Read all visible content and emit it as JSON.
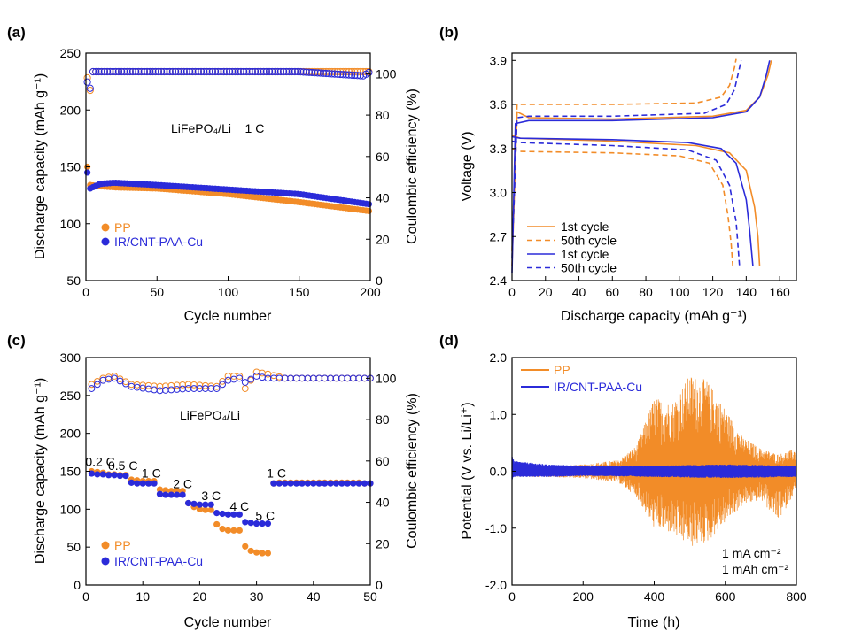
{
  "chart_data": [
    {
      "panel": "(a)",
      "type": "scatter",
      "xlabel": "Cycle number",
      "ylabel": "Discharge capacity (mAh g⁻¹)",
      "y2label": "Coulombic efficiency (%)",
      "xlim": [
        0,
        200
      ],
      "ylim": [
        50,
        250
      ],
      "y2lim": [
        0,
        110
      ],
      "xticks": [
        "0",
        "50",
        "100",
        "150",
        "200"
      ],
      "yticks": [
        "50",
        "100",
        "150",
        "200",
        "250"
      ],
      "y2ticks": [
        "0",
        "20",
        "40",
        "60",
        "80",
        "100"
      ],
      "annotation": "LiFePO₄/Li    1 C",
      "legend": [
        "PP",
        "IR/CNT-PAA-Cu"
      ],
      "legend_position": "bottom-left",
      "colors": {
        "PP": "#F28C28",
        "IR/CNT-PAA-Cu": "#2B2BD9"
      },
      "series": [
        {
          "name": "PP",
          "axis": "capacity",
          "x": [
            1,
            3,
            10,
            20,
            50,
            100,
            150,
            200
          ],
          "y": [
            150,
            134,
            133,
            132,
            131,
            126,
            119,
            111
          ]
        },
        {
          "name": "IR/CNT-PAA-Cu",
          "axis": "capacity",
          "x": [
            1,
            3,
            10,
            20,
            50,
            100,
            150,
            200
          ],
          "y": [
            145,
            131,
            135,
            136,
            134,
            130,
            126,
            117
          ]
        },
        {
          "name": "PP",
          "axis": "efficiency",
          "x": [
            1,
            2,
            3,
            5,
            10,
            50,
            100,
            150,
            195,
            200
          ],
          "y": [
            98,
            91,
            92,
            101,
            101,
            101,
            101,
            101,
            101,
            101
          ]
        },
        {
          "name": "IR/CNT-PAA-Cu",
          "axis": "efficiency",
          "x": [
            1,
            2,
            3,
            5,
            10,
            50,
            100,
            150,
            195,
            200
          ],
          "y": [
            96,
            95,
            93,
            101,
            101,
            101,
            101,
            101,
            99,
            101
          ]
        }
      ]
    },
    {
      "panel": "(b)",
      "type": "line",
      "xlabel": "Discharge capacity (mAh g⁻¹)",
      "ylabel": "Voltage (V)",
      "xlim": [
        0,
        170
      ],
      "ylim": [
        2.4,
        3.95
      ],
      "xticks": [
        "0",
        "20",
        "40",
        "60",
        "80",
        "100",
        "120",
        "140",
        "160"
      ],
      "yticks": [
        "2.4",
        "2.7",
        "3.0",
        "3.3",
        "3.6",
        "3.9"
      ],
      "legend": [
        "1st cycle",
        "50th cycle",
        "1st cycle",
        "50th cycle"
      ],
      "legend_position": "bottom-left",
      "series": [
        {
          "name": "1st cycle",
          "group": "PP",
          "color": "#F28C28",
          "dash": false,
          "charge": [
            [
              0,
              2.5
            ],
            [
              3,
              3.55
            ],
            [
              10,
              3.51
            ],
            [
              60,
              3.5
            ],
            [
              120,
              3.52
            ],
            [
              140,
              3.56
            ],
            [
              148,
              3.65
            ],
            [
              153,
              3.8
            ],
            [
              155,
              3.9
            ]
          ],
          "discharge": [
            [
              0,
              3.39
            ],
            [
              5,
              3.37
            ],
            [
              60,
              3.35
            ],
            [
              110,
              3.32
            ],
            [
              130,
              3.27
            ],
            [
              140,
              3.15
            ],
            [
              145,
              2.9
            ],
            [
              147,
              2.7
            ],
            [
              148,
              2.5
            ]
          ]
        },
        {
          "name": "50th cycle",
          "group": "PP",
          "color": "#F28C28",
          "dash": true,
          "charge": [
            [
              0,
              2.6
            ],
            [
              3,
              3.6
            ],
            [
              10,
              3.6
            ],
            [
              60,
              3.6
            ],
            [
              110,
              3.61
            ],
            [
              125,
              3.65
            ],
            [
              130,
              3.73
            ],
            [
              133,
              3.85
            ],
            [
              134,
              3.91
            ]
          ],
          "discharge": [
            [
              0,
              3.3
            ],
            [
              5,
              3.28
            ],
            [
              60,
              3.27
            ],
            [
              100,
              3.25
            ],
            [
              118,
              3.2
            ],
            [
              126,
              3.05
            ],
            [
              129,
              2.85
            ],
            [
              131,
              2.65
            ],
            [
              132,
              2.5
            ]
          ]
        },
        {
          "name": "1st cycle",
          "group": "IR/CNT-PAA-Cu",
          "color": "#2B2BD9",
          "dash": false,
          "charge": [
            [
              0,
              2.45
            ],
            [
              2,
              3.47
            ],
            [
              10,
              3.49
            ],
            [
              60,
              3.49
            ],
            [
              120,
              3.51
            ],
            [
              140,
              3.55
            ],
            [
              148,
              3.65
            ],
            [
              152,
              3.8
            ],
            [
              154,
              3.9
            ]
          ],
          "discharge": [
            [
              0,
              3.38
            ],
            [
              5,
              3.37
            ],
            [
              60,
              3.36
            ],
            [
              105,
              3.34
            ],
            [
              125,
              3.3
            ],
            [
              134,
              3.2
            ],
            [
              140,
              2.95
            ],
            [
              142,
              2.75
            ],
            [
              144,
              2.5
            ]
          ]
        },
        {
          "name": "50th cycle",
          "group": "IR/CNT-PAA-Cu",
          "color": "#2B2BD9",
          "dash": true,
          "charge": [
            [
              0,
              2.55
            ],
            [
              3,
              3.51
            ],
            [
              10,
              3.52
            ],
            [
              60,
              3.52
            ],
            [
              115,
              3.54
            ],
            [
              128,
              3.6
            ],
            [
              133,
              3.7
            ],
            [
              136,
              3.85
            ],
            [
              137,
              3.9
            ]
          ],
          "discharge": [
            [
              0,
              3.35
            ],
            [
              5,
              3.34
            ],
            [
              60,
              3.32
            ],
            [
              105,
              3.29
            ],
            [
              122,
              3.22
            ],
            [
              130,
              3.05
            ],
            [
              134,
              2.8
            ],
            [
              135,
              2.65
            ],
            [
              136,
              2.5
            ]
          ]
        }
      ]
    },
    {
      "panel": "(c)",
      "type": "scatter",
      "xlabel": "Cycle number",
      "ylabel": "Discharge capacity (mAh g⁻¹)",
      "y2label": "Coulombic efficiency (%)",
      "xlim": [
        0,
        50
      ],
      "ylim": [
        0,
        300
      ],
      "y2lim": [
        0,
        110
      ],
      "xticks": [
        "0",
        "10",
        "20",
        "30",
        "40",
        "50"
      ],
      "yticks": [
        "0",
        "50",
        "100",
        "150",
        "200",
        "250",
        "300"
      ],
      "y2ticks": [
        "0",
        "20",
        "40",
        "60",
        "80",
        "100"
      ],
      "annotation": "LiFePO₄/Li",
      "rate_labels": [
        {
          "text": "0.2 C",
          "x": 2.5,
          "y": 157
        },
        {
          "text": "0.5 C",
          "x": 6.5,
          "y": 152
        },
        {
          "text": "1 C",
          "x": 11.5,
          "y": 142
        },
        {
          "text": "2 C",
          "x": 17,
          "y": 128
        },
        {
          "text": "3 C",
          "x": 22,
          "y": 112
        },
        {
          "text": "4 C",
          "x": 27,
          "y": 98
        },
        {
          "text": "5 C",
          "x": 31.5,
          "y": 86
        },
        {
          "text": "1 C",
          "x": 33.5,
          "y": 142
        }
      ],
      "legend": [
        "PP",
        "IR/CNT-PAA-Cu"
      ],
      "legend_position": "bottom-left",
      "colors": {
        "PP": "#F28C28",
        "IR/CNT-PAA-Cu": "#2B2BD9"
      },
      "series": [
        {
          "name": "PP",
          "axis": "capacity",
          "x": [
            1,
            2,
            3,
            4,
            5,
            6,
            7,
            8,
            9,
            10,
            11,
            12,
            13,
            14,
            15,
            16,
            17,
            18,
            19,
            20,
            21,
            22,
            23,
            24,
            25,
            26,
            27,
            28,
            29,
            30,
            31,
            32,
            33,
            34,
            35,
            36,
            37,
            38,
            39,
            40,
            41,
            42,
            43,
            44,
            45,
            46,
            47,
            48,
            49,
            50
          ],
          "y": [
            150,
            149,
            148,
            146,
            146,
            145,
            145,
            139,
            138,
            137,
            137,
            137,
            126,
            125,
            124,
            124,
            124,
            108,
            103,
            100,
            99,
            99,
            80,
            74,
            72,
            72,
            72,
            51,
            45,
            43,
            42,
            42,
            134,
            135,
            135,
            135,
            135,
            135,
            135,
            135,
            135,
            135,
            135,
            135,
            135,
            135,
            135,
            135,
            134,
            134
          ]
        },
        {
          "name": "IR/CNT-PAA-Cu",
          "axis": "capacity",
          "x": [
            1,
            2,
            3,
            4,
            5,
            6,
            7,
            8,
            9,
            10,
            11,
            12,
            13,
            14,
            15,
            16,
            17,
            18,
            19,
            20,
            21,
            22,
            23,
            24,
            25,
            26,
            27,
            28,
            29,
            30,
            31,
            32,
            33,
            34,
            35,
            36,
            37,
            38,
            39,
            40,
            41,
            42,
            43,
            44,
            45,
            46,
            47,
            48,
            49,
            50
          ],
          "y": [
            147,
            146,
            146,
            145,
            145,
            144,
            144,
            135,
            134,
            134,
            134,
            134,
            120,
            119,
            119,
            119,
            119,
            108,
            107,
            106,
            106,
            106,
            95,
            94,
            93,
            93,
            93,
            83,
            82,
            81,
            81,
            81,
            134,
            134,
            134,
            134,
            134,
            134,
            134,
            134,
            134,
            134,
            134,
            134,
            134,
            134,
            134,
            134,
            134,
            134
          ]
        },
        {
          "name": "PP",
          "axis": "efficiency",
          "x": [
            1,
            3,
            5,
            8,
            13,
            18,
            23,
            25,
            27,
            28,
            30,
            32,
            35,
            40,
            45,
            50
          ],
          "y": [
            97,
            100,
            101,
            97,
            96,
            97,
            96,
            101,
            101,
            95,
            103,
            102,
            100,
            100,
            100,
            100
          ]
        },
        {
          "name": "IR/CNT-PAA-Cu",
          "axis": "efficiency",
          "x": [
            1,
            3,
            5,
            8,
            13,
            18,
            23,
            25,
            27,
            28,
            30,
            32,
            35,
            40,
            45,
            50
          ],
          "y": [
            95,
            99,
            100,
            96,
            94,
            95,
            95,
            99,
            100,
            98,
            101,
            100,
            100,
            100,
            100,
            100
          ]
        }
      ]
    },
    {
      "panel": "(d)",
      "type": "line",
      "xlabel": "Time (h)",
      "ylabel": "Potential (V vs. Li/Li⁺)",
      "xlim": [
        0,
        800
      ],
      "ylim": [
        -2.0,
        2.0
      ],
      "xticks": [
        "0",
        "200",
        "400",
        "600",
        "800"
      ],
      "yticks": [
        "-2.0",
        "-1.0",
        "0.0",
        "1.0",
        "2.0"
      ],
      "annotations": [
        "1 mA cm⁻²",
        "1 mAh cm⁻²"
      ],
      "legend": [
        "PP",
        "IR/CNT-PAA-Cu"
      ],
      "legend_position": "top-left",
      "colors": {
        "PP": "#F28C28",
        "IR/CNT-PAA-Cu": "#2B2BD9"
      },
      "series": [
        {
          "name": "PP",
          "envelope_x": [
            0,
            100,
            200,
            300,
            350,
            400,
            450,
            500,
            550,
            600,
            650,
            700,
            750,
            800
          ],
          "upper": [
            0.12,
            0.1,
            0.12,
            0.2,
            0.45,
            1.3,
            1.2,
            1.7,
            1.6,
            1.1,
            0.6,
            0.4,
            0.3,
            0.4
          ],
          "lower": [
            -0.1,
            -0.1,
            -0.12,
            -0.2,
            -0.45,
            -1.0,
            -1.1,
            -1.35,
            -1.25,
            -0.9,
            -0.6,
            -0.5,
            -0.9,
            -0.3
          ]
        },
        {
          "name": "IR/CNT-PAA-Cu",
          "envelope_x": [
            0,
            5,
            100,
            200,
            400,
            600,
            800
          ],
          "upper": [
            0.3,
            0.18,
            0.12,
            0.1,
            0.1,
            0.12,
            0.1
          ],
          "lower": [
            -0.15,
            -0.1,
            -0.1,
            -0.08,
            -0.1,
            -0.12,
            -0.1
          ]
        }
      ]
    }
  ]
}
